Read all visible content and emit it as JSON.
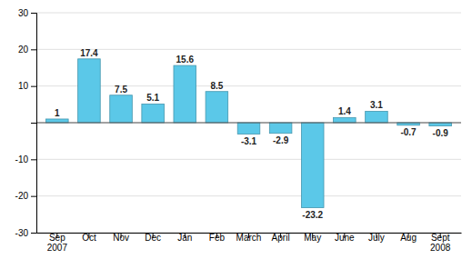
{
  "chart_data": {
    "type": "bar",
    "categories": [
      "Sep\n2007",
      "Oct",
      "Nov",
      "Dec",
      "Jan",
      "Feb",
      "March",
      "April",
      "May",
      "June",
      "July",
      "Aug",
      "Sept\n2008"
    ],
    "values": [
      1,
      17.4,
      7.5,
      5.1,
      15.6,
      8.5,
      -3.1,
      -2.9,
      -23.2,
      1.4,
      3.1,
      -0.7,
      -0.9
    ],
    "color": "#5BC8E8",
    "ylim": [
      -30,
      30
    ],
    "yticks": [
      -30,
      -20,
      -10,
      {
        "value": 0,
        "label": null
      },
      10,
      20,
      30
    ],
    "grid": true,
    "data_labels": true
  }
}
